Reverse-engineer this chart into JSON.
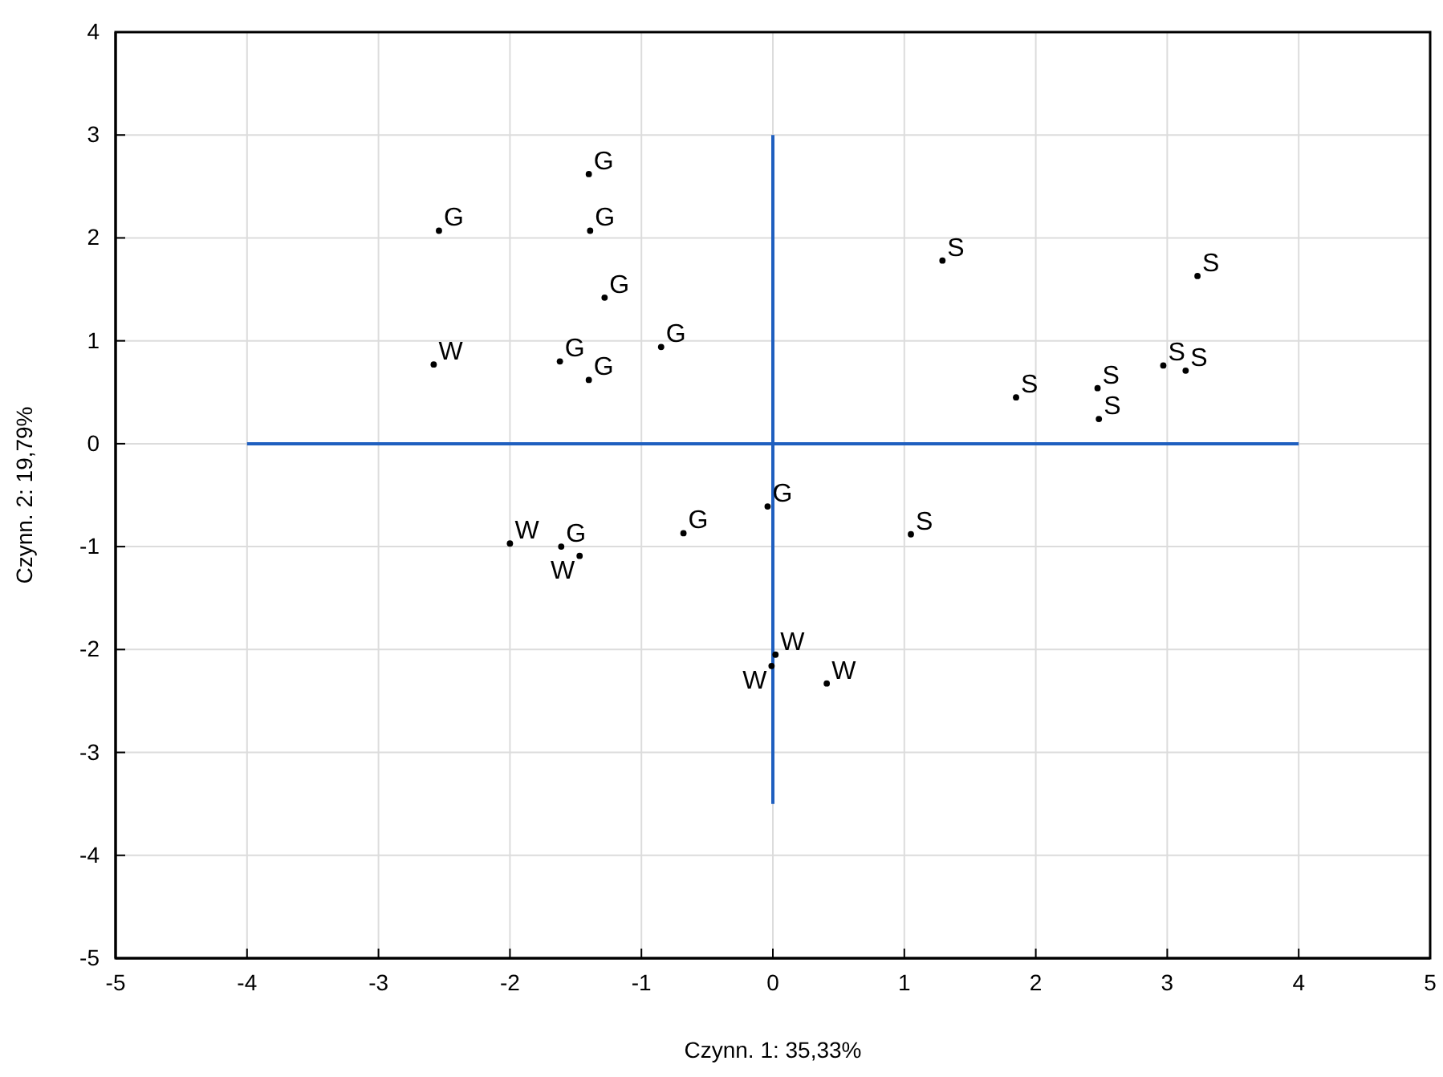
{
  "chart_data": {
    "type": "scatter",
    "xlabel": "Czynn. 1: 35,33%",
    "ylabel": "Czynn. 2: 19,79%",
    "xlim": [
      -5,
      5
    ],
    "ylim": [
      -5,
      4
    ],
    "xticks": [
      -5,
      -4,
      -3,
      -2,
      -1,
      0,
      1,
      2,
      3,
      4,
      5
    ],
    "yticks": [
      -5,
      -4,
      -3,
      -2,
      -1,
      0,
      1,
      2,
      3,
      4
    ],
    "grid": true,
    "marker": "circle",
    "series": [
      {
        "type": "line",
        "color": "#1f5fbf",
        "marker": "none",
        "x": [
          -4,
          4
        ],
        "values": [
          0,
          0
        ]
      },
      {
        "type": "line",
        "color": "#1f5fbf",
        "marker": "none",
        "x": [
          0,
          0
        ],
        "values": [
          -3.5,
          3
        ]
      },
      {
        "name": "G",
        "color": "#000000",
        "x": [
          -1.4,
          -2.54,
          -1.39,
          -1.28,
          -0.85,
          -1.62,
          -1.4,
          -1.61,
          -0.68,
          -0.04
        ],
        "values": [
          2.62,
          2.07,
          2.07,
          1.42,
          0.94,
          0.8,
          0.62,
          -1.0,
          -0.87,
          -0.61
        ]
      },
      {
        "name": "W",
        "color": "#000000",
        "x": [
          -2.58,
          -2.0,
          -1.47,
          0.02,
          -0.01,
          0.41
        ],
        "values": [
          0.77,
          -0.97,
          -1.09,
          -2.05,
          -2.16,
          -2.33
        ]
      },
      {
        "name": "S",
        "color": "#000000",
        "x": [
          1.05,
          1.29,
          3.23,
          1.85,
          2.47,
          2.48,
          2.97,
          3.14
        ],
        "values": [
          -0.88,
          1.78,
          1.63,
          0.45,
          0.54,
          0.24,
          0.76,
          0.71
        ]
      }
    ]
  }
}
